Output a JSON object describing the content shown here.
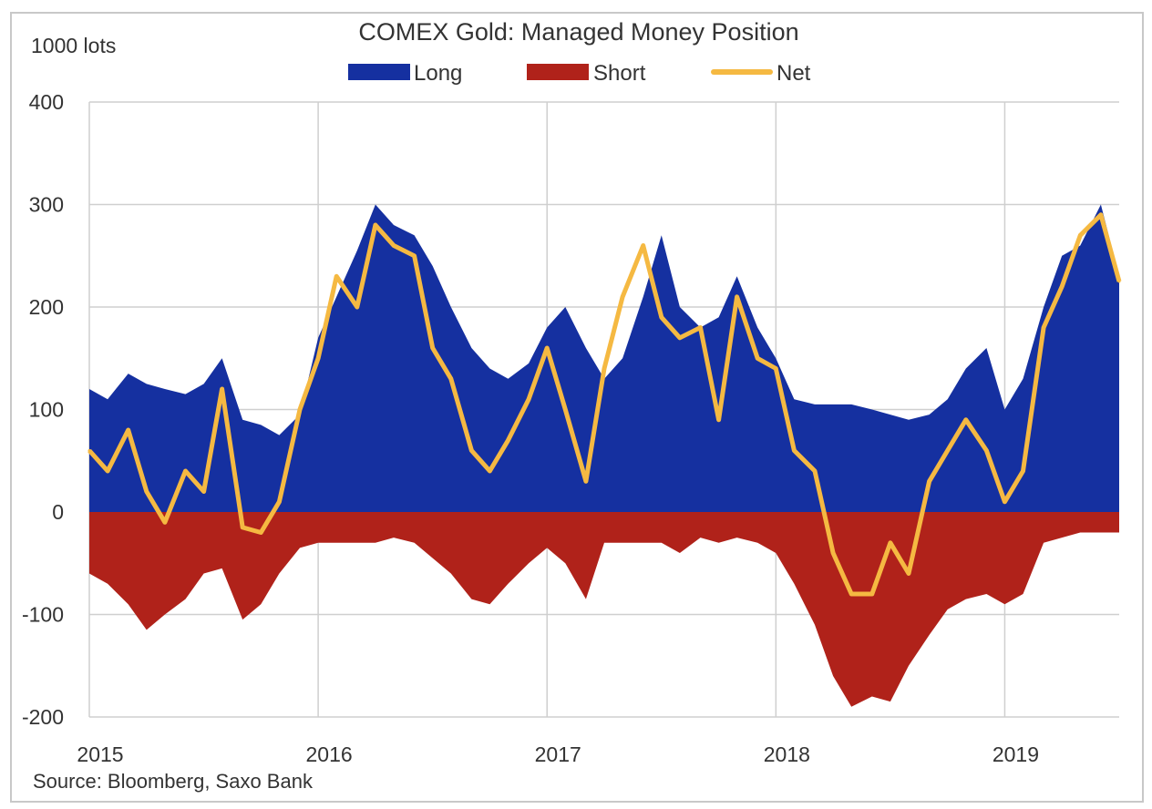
{
  "chart_data": {
    "type": "area",
    "title": "COMEX Gold: Managed Money Position",
    "ylabel": "1000 lots",
    "xlabel": "",
    "source": "Source: Bloomberg, Saxo Bank",
    "ylim": [
      -200,
      400
    ],
    "yticks": [
      400,
      300,
      200,
      100,
      0,
      -100,
      -200
    ],
    "yticklabels": [
      "400",
      "300",
      "200",
      "100",
      "0",
      "-100",
      "-200"
    ],
    "xlim": [
      2015,
      2019.5
    ],
    "xticks": [
      2015,
      2016,
      2017,
      2018,
      2019
    ],
    "xticklabels": [
      "2015",
      "2016",
      "2017",
      "2018",
      "2019"
    ],
    "grid": true,
    "legend_position": "top-center",
    "colors": {
      "Long": "#1530a0",
      "Short": "#b0221a",
      "Net": "#f5b942"
    },
    "x": [
      2015.0,
      2015.08,
      2015.17,
      2015.25,
      2015.33,
      2015.42,
      2015.5,
      2015.58,
      2015.67,
      2015.75,
      2015.83,
      2015.92,
      2016.0,
      2016.08,
      2016.17,
      2016.25,
      2016.33,
      2016.42,
      2016.5,
      2016.58,
      2016.67,
      2016.75,
      2016.83,
      2016.92,
      2017.0,
      2017.08,
      2017.17,
      2017.25,
      2017.33,
      2017.42,
      2017.5,
      2017.58,
      2017.67,
      2017.75,
      2017.83,
      2017.92,
      2018.0,
      2018.08,
      2018.17,
      2018.25,
      2018.33,
      2018.42,
      2018.5,
      2018.58,
      2018.67,
      2018.75,
      2018.83,
      2018.92,
      2019.0,
      2019.08,
      2019.17,
      2019.25,
      2019.33,
      2019.42,
      2019.5
    ],
    "series": [
      {
        "name": "Long",
        "values": [
          120,
          110,
          135,
          125,
          120,
          115,
          125,
          150,
          90,
          85,
          75,
          95,
          170,
          210,
          255,
          300,
          280,
          270,
          240,
          200,
          160,
          140,
          130,
          145,
          180,
          200,
          160,
          130,
          150,
          210,
          270,
          200,
          180,
          190,
          230,
          180,
          150,
          110,
          105,
          105,
          105,
          100,
          95,
          90,
          95,
          110,
          140,
          160,
          100,
          130,
          200,
          250,
          260,
          300,
          230
        ]
      },
      {
        "name": "Short",
        "values": [
          -60,
          -70,
          -90,
          -115,
          -100,
          -85,
          -60,
          -55,
          -105,
          -90,
          -60,
          -35,
          -30,
          -30,
          -30,
          -30,
          -25,
          -30,
          -45,
          -60,
          -85,
          -90,
          -70,
          -50,
          -35,
          -50,
          -85,
          -30,
          -30,
          -30,
          -30,
          -40,
          -25,
          -30,
          -25,
          -30,
          -40,
          -70,
          -110,
          -160,
          -190,
          -180,
          -185,
          -150,
          -120,
          -95,
          -85,
          -80,
          -90,
          -80,
          -30,
          -25,
          -20,
          -20,
          -20
        ]
      },
      {
        "name": "Net",
        "values": [
          60,
          40,
          80,
          20,
          -10,
          40,
          20,
          120,
          -15,
          -20,
          10,
          100,
          150,
          230,
          200,
          280,
          260,
          250,
          160,
          130,
          60,
          40,
          70,
          110,
          160,
          100,
          30,
          140,
          210,
          260,
          190,
          170,
          180,
          90,
          210,
          150,
          140,
          60,
          40,
          -40,
          -80,
          -80,
          -30,
          -60,
          30,
          60,
          90,
          60,
          10,
          40,
          180,
          220,
          270,
          290,
          225
        ]
      }
    ]
  }
}
